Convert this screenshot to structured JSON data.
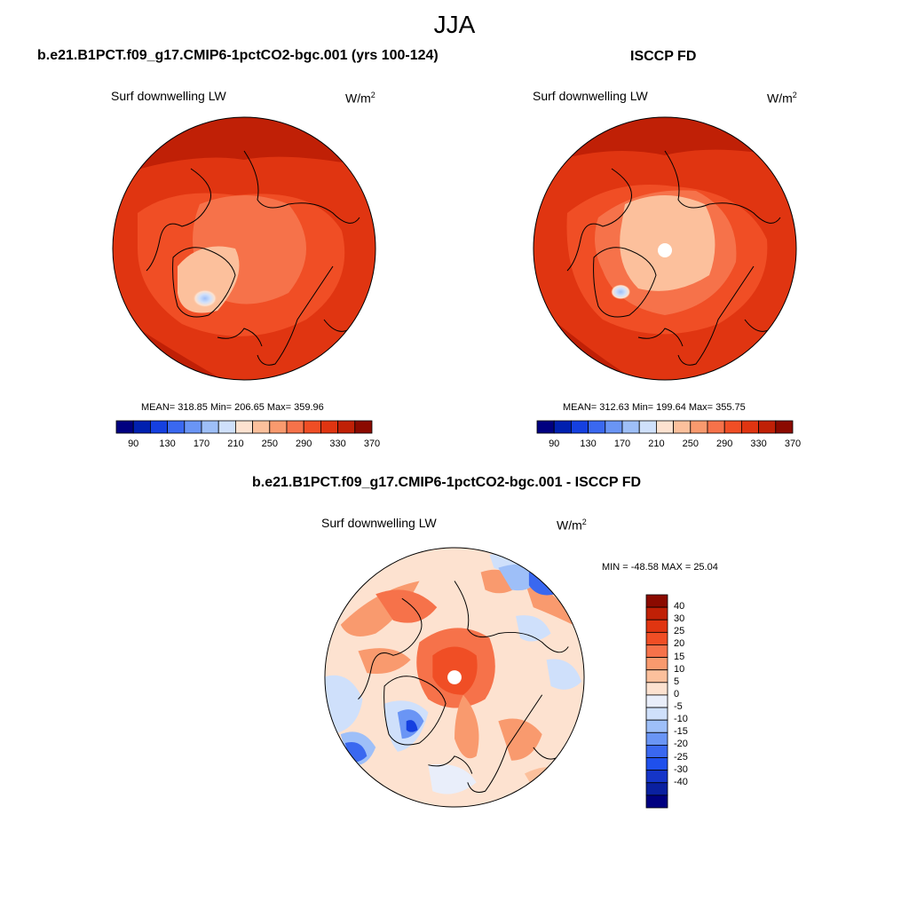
{
  "figure": {
    "title": "JJA"
  },
  "panels": [
    {
      "title": "b.e21.B1PCT.f09_g17.CMIP6-1pctCO2-bgc.001 (yrs 100-124)",
      "variable": "Surf downwelling LW",
      "units_base": "W/m",
      "units_exp": "2",
      "stats": "MEAN= 318.85  Min= 206.65  Max= 359.96"
    },
    {
      "title": "ISCCP FD",
      "variable": "Surf downwelling LW",
      "units_base": "W/m",
      "units_exp": "2",
      "stats": "MEAN= 312.63  Min= 199.64  Max= 355.75"
    },
    {
      "title": "b.e21.B1PCT.f09_g17.CMIP6-1pctCO2-bgc.001 - ISCCP FD",
      "variable": "Surf downwelling LW",
      "units_base": "W/m",
      "units_exp": "2",
      "stats": "MIN = -48.58 MAX =  25.04"
    }
  ],
  "colorbar_abs": {
    "colors": [
      "#000080",
      "#0020b0",
      "#1540e0",
      "#3a68f0",
      "#6a95f5",
      "#9ebff8",
      "#cfe0fb",
      "#fde2d0",
      "#fcc09c",
      "#f99a6e",
      "#f6724a",
      "#f04e25",
      "#e03511",
      "#c02006",
      "#8b0a00"
    ],
    "tick_labels": [
      "90",
      "130",
      "170",
      "210",
      "250",
      "290",
      "330",
      "370"
    ]
  },
  "colorbar_diff": {
    "colors": [
      "#8b0a00",
      "#c02006",
      "#e03511",
      "#f04e25",
      "#f6724a",
      "#f99a6e",
      "#fcc09c",
      "#fde2d0",
      "#e9eefa",
      "#cfe0fb",
      "#9ebff8",
      "#6a95f5",
      "#3a68f0",
      "#1f50ec",
      "#1535c8",
      "#0a20a0",
      "#000080"
    ],
    "tick_labels": [
      "40",
      "30",
      "25",
      "20",
      "15",
      "10",
      "5",
      "0",
      "-5",
      "-10",
      "-15",
      "-20",
      "-25",
      "-30",
      "-40"
    ]
  },
  "chart_data": {
    "type": "heatmap",
    "title": "JJA",
    "maps": [
      {
        "name": "b.e21.B1PCT.f09_g17.CMIP6-1pctCO2-bgc.001 (yrs 100-124)",
        "variable": "Surf downwelling LW",
        "units": "W/m2",
        "mean": 318.85,
        "min": 206.65,
        "max": 359.96,
        "colorbar_ticks": [
          90,
          130,
          170,
          210,
          250,
          290,
          330,
          370
        ]
      },
      {
        "name": "ISCCP FD",
        "variable": "Surf downwelling LW",
        "units": "W/m2",
        "mean": 312.63,
        "min": 199.64,
        "max": 355.75,
        "colorbar_ticks": [
          90,
          130,
          170,
          210,
          250,
          290,
          330,
          370
        ]
      },
      {
        "name": "b.e21.B1PCT.f09_g17.CMIP6-1pctCO2-bgc.001 - ISCCP FD",
        "variable": "Surf downwelling LW",
        "units": "W/m2",
        "min": -48.58,
        "max": 25.04,
        "colorbar_ticks": [
          40,
          30,
          25,
          20,
          15,
          10,
          5,
          0,
          -5,
          -10,
          -15,
          -20,
          -25,
          -30,
          -40
        ]
      }
    ]
  }
}
